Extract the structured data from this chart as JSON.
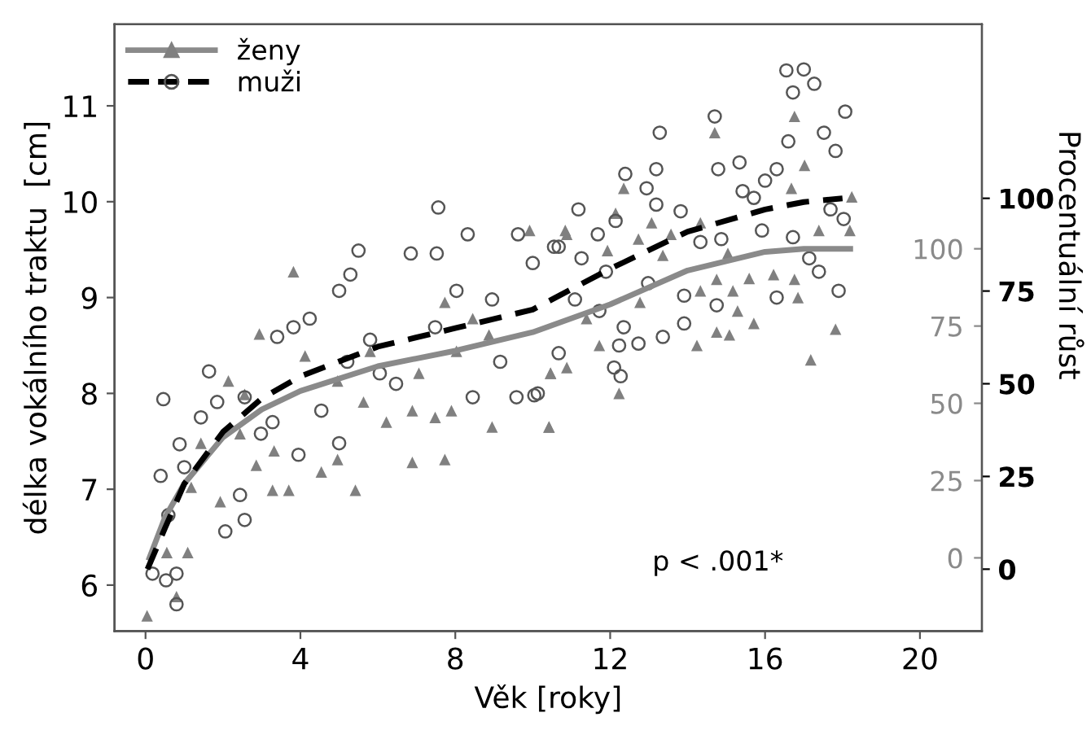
{
  "chart_data": {
    "type": "scatter",
    "xlabel": "Věk [roky]",
    "ylabel": "délka vokálního traktu  [cm]",
    "y2label": "Procentuální růst",
    "xlim": [
      -0.8,
      21.6
    ],
    "xticks": [
      0,
      4,
      8,
      12,
      16,
      20
    ],
    "ylim": [
      5.52,
      11.85
    ],
    "yticks": [
      6,
      7,
      8,
      9,
      10,
      11
    ],
    "y2lim": [
      -23.7,
      172.6
    ],
    "y2ticks": [
      0,
      25,
      50,
      75,
      100
    ],
    "y3lim": [
      -16.7,
      146.9
    ],
    "y3ticks": [
      0,
      25,
      50,
      75,
      100
    ],
    "grid": false,
    "legend": "top left",
    "annotations": [
      "p < .001*"
    ],
    "series": [
      {
        "name": "ženy",
        "marker": "triangle",
        "color": "#808080",
        "x": [
          0.04,
          0.8,
          1.09,
          0.55,
          1.93,
          3.28,
          3.7,
          4.54,
          4.96,
          5.42,
          6.89,
          7.73,
          8.95,
          10.42,
          3.82,
          2.94,
          2.14,
          1.43,
          3.32,
          4.12,
          5.63,
          6.22,
          6.89,
          7.48,
          7.9,
          8.03,
          8.87,
          9.92,
          10.84,
          10.46,
          5.8,
          2.44,
          2.56,
          1.18,
          2.86,
          4.96,
          7.06,
          8.45,
          7.73,
          16.76,
          14.7,
          12.35,
          17.02,
          16.68,
          18.24,
          18.19,
          12.14,
          10.88,
          13.07,
          14.33,
          13.57,
          12.73,
          11.93,
          15.04,
          16.22,
          16.76,
          17.39,
          14.75,
          15.59,
          15.17,
          16.85,
          15.29,
          15.71,
          14.75,
          14.24,
          15.08,
          17.82,
          17.18,
          14.33,
          13.36,
          11.72,
          12.23,
          10.42,
          10.46,
          10.88,
          12.77,
          11.39
        ],
        "values": [
          5.68,
          5.88,
          6.34,
          6.34,
          6.87,
          6.99,
          6.99,
          7.18,
          7.31,
          6.99,
          7.28,
          7.31,
          7.65,
          7.65,
          9.27,
          8.62,
          8.13,
          7.48,
          7.4,
          8.39,
          7.91,
          7.7,
          7.82,
          7.75,
          7.82,
          8.44,
          8.61,
          9.7,
          9.7,
          8.21,
          8.44,
          7.58,
          7.99,
          7.02,
          7.25,
          8.13,
          8.21,
          8.78,
          8.95,
          10.89,
          10.72,
          10.14,
          10.38,
          10.14,
          10.05,
          9.7,
          9.88,
          9.66,
          9.78,
          9.78,
          9.66,
          9.61,
          9.49,
          9.46,
          9.24,
          9.19,
          9.7,
          9.19,
          9.2,
          9.07,
          9.0,
          8.86,
          8.73,
          8.64,
          8.5,
          8.61,
          8.67,
          8.35,
          9.07,
          9.44,
          8.5,
          8.0,
          7.65,
          8.21,
          8.27,
          8.95,
          8.78
        ]
      },
      {
        "name": "muži",
        "marker": "circle",
        "color": "#555555",
        "x": [
          0.46,
          0.39,
          0.18,
          0.53,
          0.8,
          0.8,
          1.64,
          0.88,
          1.0,
          2.06,
          2.56,
          2.44,
          1.85,
          2.56,
          3.4,
          3.82,
          4.24,
          5.0,
          5.0,
          5.29,
          5.5,
          3.95,
          2.98,
          5.8,
          6.47,
          6.85,
          7.52,
          7.56,
          8.32,
          9.62,
          8.45,
          9.58,
          10.04,
          7.48,
          8.03,
          8.95,
          9.16,
          10.0,
          10.67,
          6.05,
          5.21,
          4.54,
          3.28,
          1.43,
          0.59,
          16.55,
          17.0,
          17.27,
          16.72,
          18.07,
          14.7,
          13.28,
          17.52,
          17.82,
          16.6,
          12.39,
          13.19,
          12.94,
          13.19,
          14.79,
          15.34,
          11.18,
          12.14,
          13.82,
          15.42,
          16.0,
          16.3,
          15.71,
          17.69,
          18.03,
          15.92,
          16.72,
          17.14,
          17.9,
          16.3,
          10.55,
          11.26,
          11.68,
          11.89,
          12.98,
          13.91,
          14.33,
          14.87,
          11.09,
          11.72,
          12.35,
          12.73,
          12.23,
          12.1,
          12.27,
          13.36,
          13.91,
          14.75,
          10.67,
          10.13,
          17.39
        ],
        "values": [
          7.94,
          7.14,
          6.12,
          6.05,
          5.8,
          6.12,
          8.23,
          7.47,
          7.23,
          6.56,
          6.68,
          6.94,
          7.91,
          7.96,
          8.59,
          8.69,
          8.78,
          7.48,
          9.07,
          9.24,
          9.49,
          7.36,
          7.58,
          8.56,
          8.1,
          9.46,
          9.46,
          9.94,
          9.66,
          9.66,
          7.96,
          7.96,
          7.98,
          8.69,
          9.07,
          8.98,
          8.33,
          9.36,
          9.53,
          8.21,
          8.33,
          7.82,
          7.7,
          7.75,
          6.73,
          11.37,
          11.38,
          11.23,
          11.14,
          10.94,
          10.89,
          10.72,
          10.72,
          10.53,
          10.63,
          10.29,
          10.34,
          10.14,
          9.97,
          10.34,
          10.41,
          9.92,
          9.8,
          9.9,
          10.11,
          10.22,
          10.34,
          10.04,
          9.92,
          9.82,
          9.7,
          9.63,
          9.41,
          9.07,
          9.0,
          9.53,
          9.41,
          9.66,
          9.27,
          9.15,
          9.02,
          9.58,
          9.61,
          8.98,
          8.86,
          8.69,
          8.52,
          8.5,
          8.27,
          8.18,
          8.59,
          8.73,
          8.92,
          8.42,
          8.0,
          9.27
        ]
      },
      {
        "type": "line",
        "axis": "y2",
        "line_style": "solid",
        "color": "#8a8a8a",
        "x": [
          0.1,
          0.5,
          1,
          2,
          3,
          4,
          6,
          8,
          10,
          12,
          14,
          16,
          17,
          18.2
        ],
        "values": [
          0,
          13,
          24,
          39,
          48,
          54,
          62,
          67,
          73,
          82,
          93,
          99,
          100,
          100
        ]
      },
      {
        "type": "line",
        "axis": "y3",
        "line_style": "dashed",
        "color": "#000000",
        "x": [
          0.05,
          0.5,
          1,
          2,
          3,
          4,
          6,
          8,
          10,
          12,
          14,
          16,
          17,
          18
        ],
        "values": [
          0,
          11,
          23,
          37,
          46,
          52,
          60,
          65,
          70,
          81,
          91,
          97,
          99,
          100
        ]
      }
    ]
  }
}
